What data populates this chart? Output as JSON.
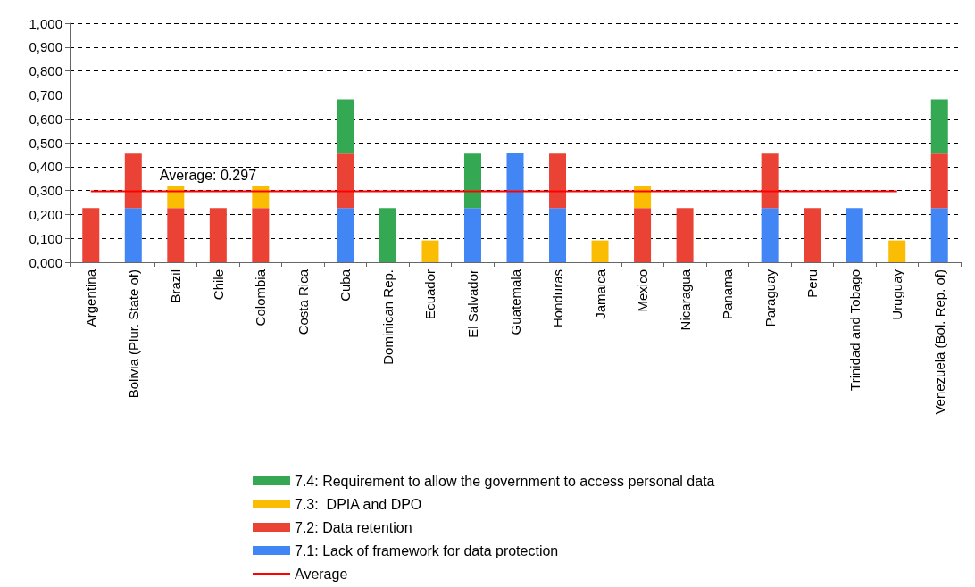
{
  "chart_data": {
    "type": "bar",
    "stacked": true,
    "categories": [
      "Argentina",
      "Bolivia (Plur. State of)",
      "Brazil",
      "Chile",
      "Colombia",
      "Costa Rica",
      "Cuba",
      "Dominican Rep.",
      "Ecuador",
      "El Salvador",
      "Guatemala",
      "Honduras",
      "Jamaica",
      "Mexico",
      "Nicaragua",
      "Panama",
      "Paraguay",
      "Peru",
      "Trinidad and Tobago",
      "Uruguay",
      "Venezuela (Bol. Rep. of)"
    ],
    "series": [
      {
        "name": "7.1: Lack of framework for data protection",
        "color": "#4285f4",
        "values": [
          null,
          0.227,
          null,
          null,
          null,
          null,
          0.227,
          null,
          null,
          0.227,
          0.455,
          0.227,
          null,
          null,
          null,
          null,
          0.227,
          null,
          0.227,
          null,
          0.227
        ]
      },
      {
        "name": "7.2: Data retention",
        "color": "#ea4335",
        "values": [
          0.227,
          0.227,
          0.227,
          0.227,
          0.227,
          null,
          0.227,
          null,
          null,
          null,
          null,
          0.227,
          null,
          0.227,
          0.227,
          null,
          0.227,
          0.227,
          null,
          null,
          0.227
        ]
      },
      {
        "name": "7.3:  DPIA and DPO",
        "color": "#fbbc04",
        "values": [
          null,
          null,
          0.091,
          null,
          0.091,
          null,
          null,
          null,
          0.091,
          null,
          null,
          null,
          0.091,
          0.091,
          null,
          null,
          null,
          null,
          null,
          0.091,
          null
        ]
      },
      {
        "name": "7.4: Requirement to allow the government to access personal data",
        "color": "#34a853",
        "values": [
          null,
          null,
          null,
          null,
          null,
          null,
          0.227,
          0.227,
          null,
          0.227,
          null,
          null,
          null,
          null,
          null,
          null,
          null,
          null,
          null,
          null,
          0.227
        ]
      },
      {
        "name": "Average",
        "type": "line",
        "color": "#ff0000",
        "values": [
          0.297,
          0.297,
          0.297,
          0.297,
          0.297,
          0.297,
          0.297,
          0.297,
          0.297,
          0.297,
          0.297,
          0.297,
          0.297,
          0.297,
          0.297,
          0.297,
          0.297,
          0.297,
          0.297,
          0.297,
          null
        ]
      }
    ],
    "annotations": [
      {
        "text": "Average: 0.297",
        "x": "Brazil",
        "y": 0.297
      }
    ],
    "ylim": [
      0,
      1
    ],
    "yticks": [
      {
        "value": 0,
        "label": "0,000"
      },
      {
        "value": 0.1,
        "label": "0,100"
      },
      {
        "value": 0.2,
        "label": "0,200"
      },
      {
        "value": 0.3,
        "label": "0,300"
      },
      {
        "value": 0.4,
        "label": "0,400"
      },
      {
        "value": 0.5,
        "label": "0,500"
      },
      {
        "value": 0.6,
        "label": "0,600"
      },
      {
        "value": 0.7,
        "label": "0,700"
      },
      {
        "value": 0.8,
        "label": "0,800"
      },
      {
        "value": 0.9,
        "label": "0,900"
      },
      {
        "value": 1,
        "label": "1,000"
      }
    ],
    "grid": "y",
    "legend": "bottom",
    "marker": "none"
  }
}
